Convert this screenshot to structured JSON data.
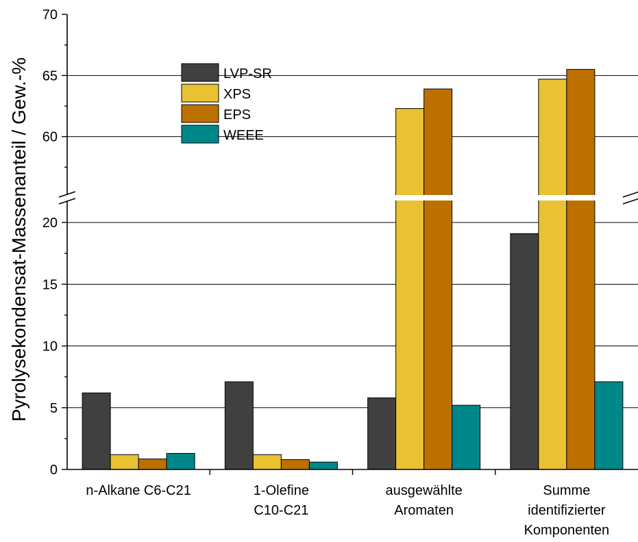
{
  "chart_data": {
    "type": "bar",
    "ylabel": "Pyrolysekondensat-Massenanteil / Gew.-%",
    "xlabel": "",
    "categories": [
      [
        "n-Alkane C6-C21"
      ],
      [
        "1-Olefine",
        "C10-C21"
      ],
      [
        "ausgewählte",
        "Aromaten"
      ],
      [
        "Summe",
        "identifizierter",
        "Komponenten"
      ]
    ],
    "series": [
      {
        "name": "LVP-SR",
        "color": "#404040",
        "values": [
          6.2,
          7.1,
          5.8,
          19.1
        ]
      },
      {
        "name": "XPS",
        "color": "#E8C232",
        "values": [
          1.2,
          1.2,
          62.3,
          64.7
        ]
      },
      {
        "name": "EPS",
        "color": "#BC7000",
        "values": [
          0.85,
          0.8,
          63.9,
          65.5
        ]
      },
      {
        "name": "WEEE",
        "color": "#00878A",
        "values": [
          1.3,
          0.6,
          5.2,
          7.1
        ]
      }
    ],
    "axis_break": {
      "lower_range": [
        0,
        22
      ],
      "upper_range": [
        55,
        70
      ]
    },
    "yticks_lower": [
      0,
      5,
      10,
      15,
      20
    ],
    "yticks_upper": [
      60,
      65,
      70
    ],
    "grid": "horizontal",
    "legend_position": "top-left"
  }
}
